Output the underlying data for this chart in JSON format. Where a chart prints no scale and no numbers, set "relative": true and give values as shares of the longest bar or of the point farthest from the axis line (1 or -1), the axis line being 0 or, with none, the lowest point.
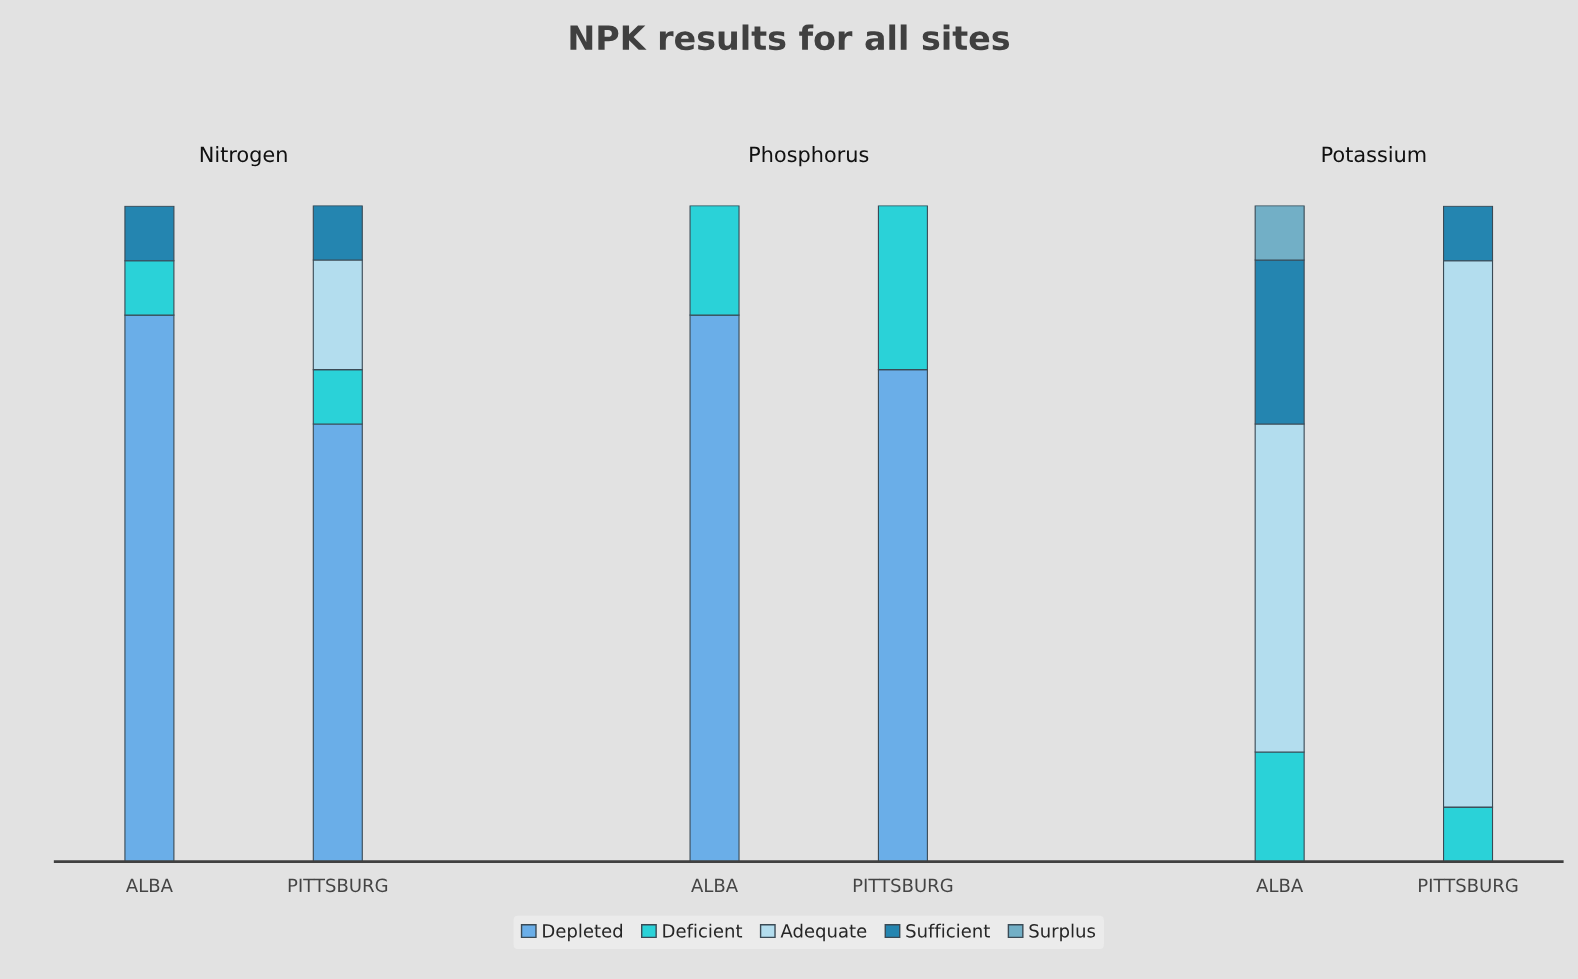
{
  "chart_data": {
    "type": "bar",
    "title": "NPK results for all sites",
    "stacked": true,
    "relative": true,
    "legend": "bottom",
    "categories": [
      "ALBA",
      "PITTSBURG",
      null,
      "ALBA",
      "PITTSBURG",
      null,
      "ALBA",
      "PITTSBURG"
    ],
    "annotations": [
      "Nitrogen",
      "Phosphorus",
      "Potassium"
    ],
    "series": [
      {
        "name": "Depleted",
        "color": "#6aaee8",
        "values": [
          0.833,
          0.667,
          null,
          0.833,
          0.75,
          null,
          null,
          null
        ]
      },
      {
        "name": "Deficient",
        "color": "#2ad2d8",
        "values": [
          0.083,
          0.083,
          null,
          0.167,
          0.25,
          null,
          0.167,
          0.083
        ]
      },
      {
        "name": "Adequate",
        "color": "#b3ddee",
        "values": [
          null,
          0.167,
          null,
          null,
          null,
          null,
          0.5,
          0.833
        ]
      },
      {
        "name": "Sufficient",
        "color": "#2485b0",
        "values": [
          0.083,
          0.083,
          null,
          null,
          null,
          null,
          0.25,
          0.083
        ]
      },
      {
        "name": "Surplus",
        "color": "#72afc6",
        "values": [
          null,
          null,
          null,
          null,
          null,
          null,
          0.083,
          null
        ]
      }
    ]
  }
}
